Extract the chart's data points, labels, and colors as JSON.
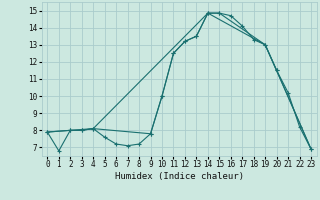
{
  "title": "",
  "xlabel": "Humidex (Indice chaleur)",
  "bg_color": "#cce8e0",
  "grid_color": "#aacccc",
  "line_color": "#1a7070",
  "xlim": [
    -0.5,
    23.5
  ],
  "ylim": [
    6.5,
    15.5
  ],
  "xticks": [
    0,
    1,
    2,
    3,
    4,
    5,
    6,
    7,
    8,
    9,
    10,
    11,
    12,
    13,
    14,
    15,
    16,
    17,
    18,
    19,
    20,
    21,
    22,
    23
  ],
  "yticks": [
    7,
    8,
    9,
    10,
    11,
    12,
    13,
    14,
    15
  ],
  "series1_x": [
    0,
    1,
    2,
    3,
    4,
    5,
    6,
    7,
    8,
    9,
    10,
    11,
    12,
    13,
    14,
    15,
    16,
    17,
    18,
    19,
    20,
    21,
    22,
    23
  ],
  "series1_y": [
    7.9,
    6.8,
    8.0,
    8.0,
    8.1,
    7.6,
    7.2,
    7.1,
    7.2,
    7.8,
    10.0,
    12.5,
    13.2,
    13.5,
    14.85,
    14.85,
    14.7,
    14.1,
    13.3,
    13.0,
    11.5,
    10.2,
    8.2,
    6.9
  ],
  "series2_x": [
    0,
    2,
    3,
    4,
    9,
    10,
    11,
    12,
    13,
    14,
    15,
    19,
    20,
    23
  ],
  "series2_y": [
    7.9,
    8.0,
    8.0,
    8.1,
    7.8,
    10.0,
    12.5,
    13.2,
    13.5,
    14.85,
    14.85,
    13.0,
    11.5,
    6.9
  ],
  "series3_x": [
    0,
    4,
    14,
    19,
    23
  ],
  "series3_y": [
    7.9,
    8.1,
    14.85,
    13.0,
    6.9
  ]
}
